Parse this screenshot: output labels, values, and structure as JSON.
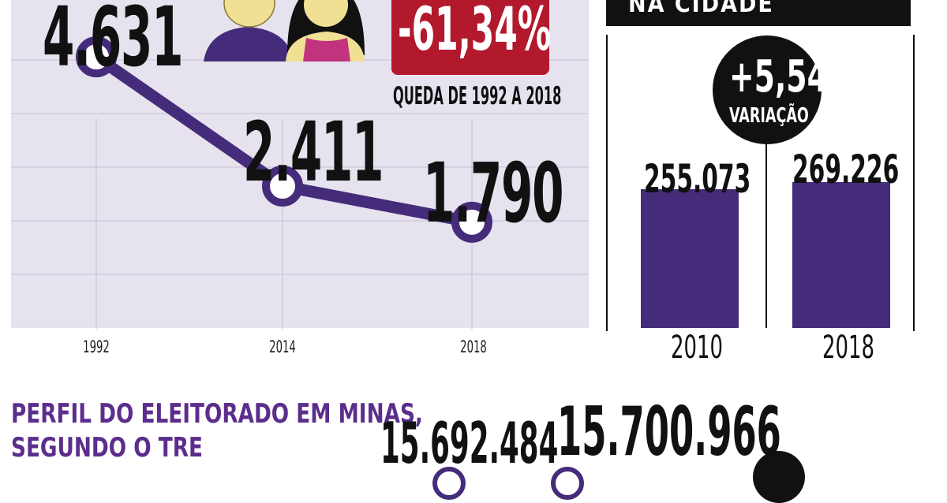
{
  "chart_data": [
    {
      "type": "line",
      "x": [
        "1992",
        "2014",
        "2018"
      ],
      "values": [
        4631,
        2411,
        1790
      ],
      "data_labels": [
        "4.631",
        "2.411",
        "1.790"
      ],
      "ylim": [
        0,
        5500
      ],
      "grid": true,
      "colors": {
        "line": "#452c7a",
        "marker_fill": "#ffffff",
        "background": "#e6e2ee"
      },
      "annotation": {
        "value": "-61,34%",
        "caption": "QUEDA DE 1992 A 2018",
        "color": "#b2192c"
      }
    },
    {
      "type": "bar",
      "title": "NA CIDADE",
      "categories": [
        "2010",
        "2018"
      ],
      "values": [
        255073,
        269226
      ],
      "data_labels": [
        "255.073",
        "269.226"
      ],
      "ylim": [
        0,
        540000
      ],
      "color": "#452c7a",
      "badge": {
        "value": "+5,54",
        "caption": "VARIAÇÃO"
      }
    },
    {
      "type": "bar",
      "title": "PERFIL DO ELEITORADO EM MINAS, SEGUNDO O TRE",
      "data_labels": [
        "15.692.484",
        "15.700.966"
      ],
      "values": [
        15692484,
        15700966
      ]
    }
  ],
  "perfil": {
    "line1": "PERFIL DO ELEITORADO EM MINAS,",
    "line2": "SEGUNDO O TRE"
  }
}
